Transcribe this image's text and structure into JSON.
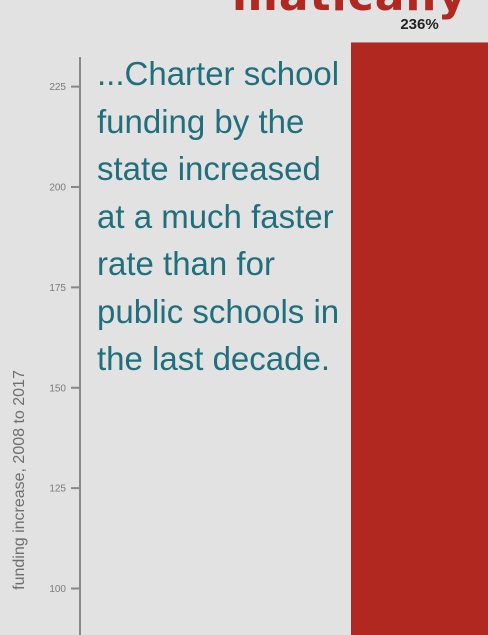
{
  "headline": "matically",
  "callout": "...Charter school funding by the state increased at a much faster rate than for public schools in the last decade.",
  "colors": {
    "bar": "#b02820",
    "callout": "#1f6f7c",
    "axis": "#888888",
    "background": "#e2e2e2"
  },
  "chart_data": {
    "type": "bar",
    "ylabel": "funding increase, 2008 to 2017",
    "ylim": [
      95,
      240
    ],
    "y_ticks": [
      100,
      125,
      150,
      175,
      200,
      225
    ],
    "categories": [
      ""
    ],
    "values": [
      236
    ],
    "data_labels": [
      "236%"
    ],
    "grid": false
  }
}
